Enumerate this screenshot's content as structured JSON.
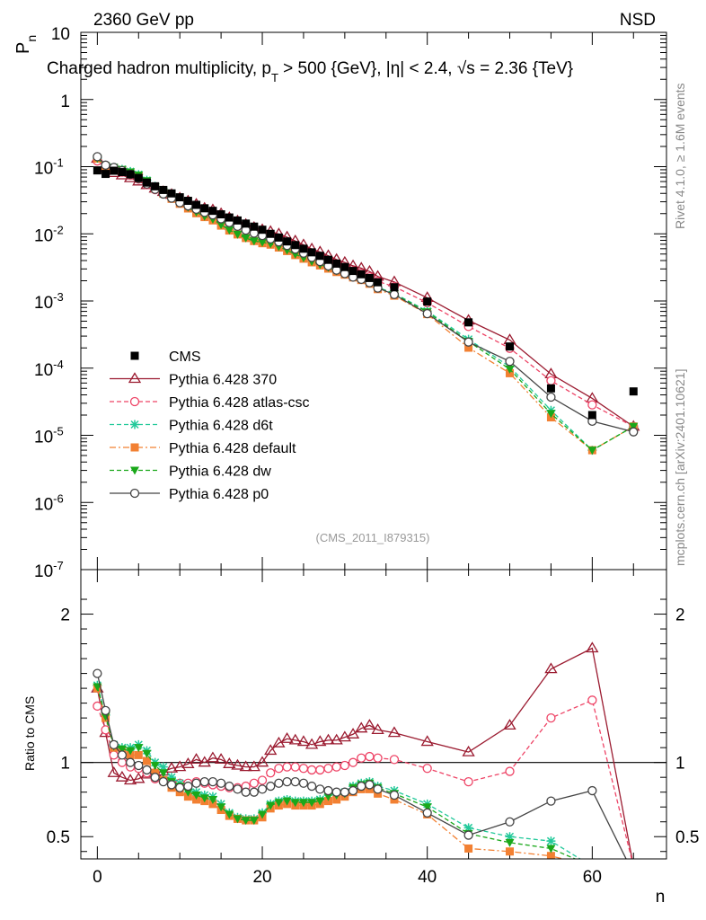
{
  "header": {
    "left": "2360 GeV pp",
    "right": "NSD",
    "title": "Charged hadron multiplicity, p",
    "title_sub": "T",
    "title_rest": " > 500 {GeV}, |η| < 2.4, √s = 2.36 {TeV}"
  },
  "side_text": {
    "rivet": "Rivet 4.1.0, ≥ 1.6M events",
    "mcplots": "mcplots.cern.ch [arXiv:2401.10621]"
  },
  "analysis_tag": "(CMS_2011_I879315)",
  "axes": {
    "ylabel_main": "P",
    "ylabel_main_sub": "n",
    "ylabel_ratio": "Ratio to CMS",
    "xlabel": "n",
    "x_ticks": [
      "0",
      "20",
      "40",
      "60"
    ],
    "main_ticks": [
      {
        "base": "10",
        "exp": "-7",
        "v": -7
      },
      {
        "base": "10",
        "exp": "-6",
        "v": -6
      },
      {
        "base": "10",
        "exp": "-5",
        "v": -5
      },
      {
        "base": "10",
        "exp": "-4",
        "v": -4
      },
      {
        "base": "10",
        "exp": "-3",
        "v": -3
      },
      {
        "base": "10",
        "exp": "-2",
        "v": -2
      },
      {
        "base": "10",
        "exp": "-1",
        "v": -1
      },
      {
        "base": "1",
        "exp": "",
        "v": 0
      },
      {
        "base": "10",
        "exp": "",
        "v": 1
      }
    ],
    "ratio_ticks": [
      "0.5",
      "1",
      "2"
    ]
  },
  "colors": {
    "CMS": "#000000",
    "370": "#9b1b30",
    "atlas-csc": "#ee4466",
    "d6t": "#22c99a",
    "default": "#f28032",
    "dw": "#1aa81a",
    "p0": "#444444"
  },
  "chart_data": {
    "type": "scatter",
    "title": "Charged hadron multiplicity, pT > 500 {GeV}, |η| < 2.4, √s = 2.36 {TeV}",
    "xlabel": "n",
    "ylabel": "P_n",
    "xlim": [
      -2,
      69
    ],
    "ylim": [
      1e-07,
      10
    ],
    "yscale": "log",
    "ratio_ylabel": "Ratio to CMS",
    "ratio_ylim": [
      0.35,
      2.3
    ],
    "data": {
      "name": "CMS",
      "x": [
        0,
        1,
        2,
        3,
        4,
        5,
        6,
        7,
        8,
        9,
        10,
        11,
        12,
        13,
        14,
        15,
        16,
        17,
        18,
        19,
        20,
        21,
        22,
        23,
        24,
        25,
        26,
        27,
        28,
        29,
        30,
        31,
        32,
        33,
        34,
        36,
        40,
        45,
        50,
        55,
        60,
        65
      ],
      "y": [
        0.088,
        0.078,
        0.087,
        0.083,
        0.077,
        0.068,
        0.058,
        0.051,
        0.045,
        0.04,
        0.035,
        0.031,
        0.027,
        0.024,
        0.022,
        0.0195,
        0.0175,
        0.0158,
        0.0142,
        0.0128,
        0.0115,
        0.01,
        0.0088,
        0.0077,
        0.0068,
        0.006,
        0.0053,
        0.0047,
        0.0041,
        0.0036,
        0.0032,
        0.0028,
        0.0025,
        0.0022,
        0.0019,
        0.0016,
        0.00098,
        0.00048,
        0.00021,
        5e-05,
        2e-05,
        4.5e-05
      ]
    },
    "series": [
      {
        "name": "Pythia 6.428 370",
        "x": [
          0,
          1,
          2,
          3,
          4,
          5,
          6,
          7,
          8,
          9,
          10,
          11,
          12,
          13,
          14,
          15,
          16,
          17,
          18,
          19,
          20,
          21,
          22,
          23,
          24,
          25,
          26,
          27,
          28,
          29,
          30,
          31,
          32,
          33,
          34,
          36,
          40,
          45,
          50,
          55,
          60,
          65
        ],
        "ratio": [
          1.5,
          1.2,
          0.93,
          0.9,
          0.88,
          0.89,
          0.92,
          0.93,
          0.94,
          0.96,
          0.97,
          0.99,
          1.02,
          1.0,
          1.03,
          1.02,
          0.99,
          0.98,
          0.97,
          0.97,
          1.0,
          1.08,
          1.13,
          1.16,
          1.15,
          1.14,
          1.12,
          1.14,
          1.15,
          1.15,
          1.17,
          1.19,
          1.23,
          1.25,
          1.22,
          1.2,
          1.14,
          1.07,
          1.25,
          1.63,
          1.77,
          0.3
        ]
      },
      {
        "name": "Pythia 6.428 atlas-csc",
        "x": [
          0,
          1,
          2,
          3,
          4,
          5,
          6,
          7,
          8,
          9,
          10,
          11,
          12,
          13,
          14,
          15,
          16,
          17,
          18,
          19,
          20,
          21,
          22,
          23,
          24,
          25,
          26,
          27,
          28,
          29,
          30,
          31,
          32,
          33,
          34,
          36,
          40,
          45,
          50,
          55,
          60,
          65
        ],
        "ratio": [
          1.38,
          1.22,
          1.05,
          1.0,
          0.97,
          0.96,
          0.93,
          0.89,
          0.88,
          0.87,
          0.86,
          0.86,
          0.87,
          0.86,
          0.85,
          0.84,
          0.83,
          0.83,
          0.84,
          0.86,
          0.88,
          0.93,
          0.96,
          0.97,
          0.97,
          0.96,
          0.95,
          0.95,
          0.96,
          0.97,
          0.98,
          1.0,
          1.03,
          1.04,
          1.03,
          1.02,
          0.96,
          0.87,
          0.94,
          1.3,
          1.42,
          0.3
        ]
      },
      {
        "name": "Pythia 6.428 d6t",
        "x": [
          0,
          1,
          2,
          3,
          4,
          5,
          6,
          7,
          8,
          9,
          10,
          11,
          12,
          13,
          14,
          15,
          16,
          17,
          18,
          19,
          20,
          21,
          22,
          23,
          24,
          25,
          26,
          27,
          28,
          29,
          30,
          31,
          32,
          33,
          34,
          36,
          40,
          45,
          50,
          55,
          60,
          65
        ],
        "ratio": [
          1.52,
          1.32,
          1.12,
          1.1,
          1.1,
          1.12,
          1.08,
          1.0,
          0.97,
          0.9,
          0.86,
          0.82,
          0.8,
          0.78,
          0.77,
          0.72,
          0.66,
          0.63,
          0.62,
          0.62,
          0.66,
          0.72,
          0.74,
          0.75,
          0.74,
          0.74,
          0.74,
          0.75,
          0.78,
          0.79,
          0.8,
          0.84,
          0.86,
          0.87,
          0.84,
          0.81,
          0.72,
          0.56,
          0.5,
          0.47,
          0.3,
          0.3
        ]
      },
      {
        "name": "Pythia 6.428 default",
        "x": [
          0,
          1,
          2,
          3,
          4,
          5,
          6,
          7,
          8,
          9,
          10,
          11,
          12,
          13,
          14,
          15,
          16,
          17,
          18,
          19,
          20,
          21,
          22,
          23,
          24,
          25,
          26,
          27,
          28,
          29,
          30,
          31,
          32,
          33,
          34,
          36,
          40,
          45,
          50,
          55,
          60,
          65
        ],
        "ratio": [
          1.5,
          1.3,
          1.1,
          1.07,
          1.05,
          1.05,
          1.01,
          0.93,
          0.88,
          0.83,
          0.8,
          0.77,
          0.75,
          0.74,
          0.72,
          0.68,
          0.64,
          0.62,
          0.61,
          0.61,
          0.63,
          0.69,
          0.71,
          0.72,
          0.71,
          0.71,
          0.71,
          0.72,
          0.74,
          0.75,
          0.77,
          0.8,
          0.82,
          0.82,
          0.79,
          0.75,
          0.65,
          0.42,
          0.4,
          0.37,
          0.3,
          0.3
        ]
      },
      {
        "name": "Pythia 6.428 dw",
        "x": [
          0,
          1,
          2,
          3,
          4,
          5,
          6,
          7,
          8,
          9,
          10,
          11,
          12,
          13,
          14,
          15,
          16,
          17,
          18,
          19,
          20,
          21,
          22,
          23,
          24,
          25,
          26,
          27,
          28,
          29,
          30,
          31,
          32,
          33,
          34,
          36,
          40,
          45,
          50,
          55,
          60,
          65
        ],
        "ratio": [
          1.51,
          1.31,
          1.11,
          1.09,
          1.08,
          1.1,
          1.06,
          0.98,
          0.93,
          0.87,
          0.84,
          0.8,
          0.78,
          0.76,
          0.75,
          0.7,
          0.65,
          0.62,
          0.61,
          0.61,
          0.65,
          0.71,
          0.73,
          0.74,
          0.73,
          0.73,
          0.73,
          0.74,
          0.77,
          0.78,
          0.79,
          0.83,
          0.85,
          0.86,
          0.83,
          0.79,
          0.7,
          0.52,
          0.46,
          0.42,
          0.3,
          0.3
        ]
      },
      {
        "name": "Pythia 6.428 p0",
        "x": [
          0,
          1,
          2,
          3,
          4,
          5,
          6,
          7,
          8,
          9,
          10,
          11,
          12,
          13,
          14,
          15,
          16,
          17,
          18,
          19,
          20,
          21,
          22,
          23,
          24,
          25,
          26,
          27,
          28,
          29,
          30,
          31,
          32,
          33,
          34,
          36,
          40,
          45,
          50,
          55,
          60,
          65
        ],
        "ratio": [
          1.6,
          1.35,
          1.12,
          1.05,
          1.0,
          0.98,
          0.95,
          0.9,
          0.87,
          0.85,
          0.83,
          0.84,
          0.86,
          0.87,
          0.87,
          0.86,
          0.84,
          0.82,
          0.8,
          0.8,
          0.82,
          0.84,
          0.86,
          0.87,
          0.87,
          0.86,
          0.84,
          0.82,
          0.81,
          0.8,
          0.8,
          0.81,
          0.84,
          0.85,
          0.82,
          0.78,
          0.66,
          0.51,
          0.6,
          0.74,
          0.81,
          0.25
        ]
      }
    ]
  },
  "legend": [
    {
      "label": "CMS",
      "key": "CMS",
      "marker": "square-filled",
      "dash": ""
    },
    {
      "label": "Pythia 6.428 370",
      "key": "370",
      "marker": "triangle-open",
      "dash": ""
    },
    {
      "label": "Pythia 6.428 atlas-csc",
      "key": "atlas-csc",
      "marker": "circle-open",
      "dash": "5,3"
    },
    {
      "label": "Pythia 6.428 d6t",
      "key": "d6t",
      "marker": "star",
      "dash": "5,3"
    },
    {
      "label": "Pythia 6.428 default",
      "key": "default",
      "marker": "square-filled",
      "dash": "7,3,2,3"
    },
    {
      "label": "Pythia 6.428 dw",
      "key": "dw",
      "marker": "triangle-down-filled",
      "dash": "5,3"
    },
    {
      "label": "Pythia 6.428 p0",
      "key": "p0",
      "marker": "circle-open",
      "dash": ""
    }
  ]
}
